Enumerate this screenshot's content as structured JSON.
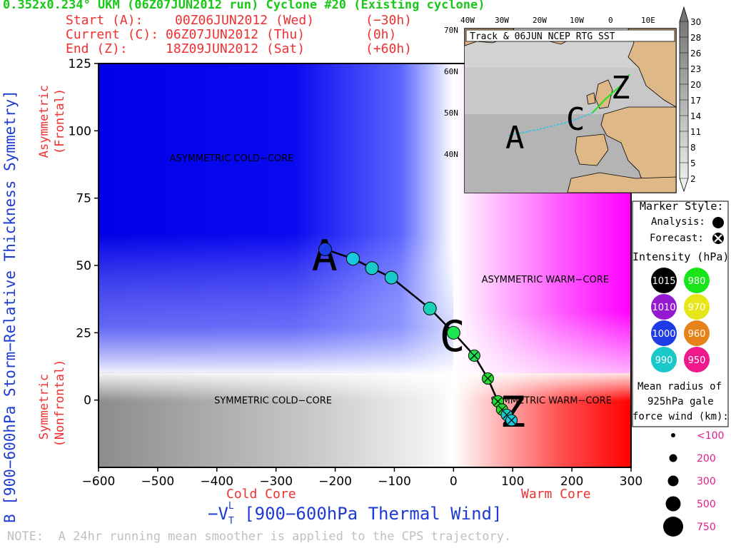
{
  "header": {
    "title": "0.352x0.234° UKM (06Z07JUN2012 run) Cyclone #20 (Existing cyclone)",
    "start_label": "Start (A):",
    "start_time": "00Z06JUN2012 (Wed)",
    "start_offset": "(−30h)",
    "current_label": "Current (C):",
    "current_time": "06Z07JUN2012 (Thu)",
    "current_offset": "(0h)",
    "end_label": "End (Z):",
    "end_time": "18Z09JUN2012 (Sat)",
    "end_offset": "(+60h)"
  },
  "note": "NOTE:  A 24hr running mean smoother is applied to the CPS trajectory.",
  "colors": {
    "title_green": "#19c819",
    "header_red": "#f03030",
    "axis_blue": "#1e3cd2",
    "cold_blue": "#1e1ee6",
    "warm_magenta": "#ff00ff",
    "warm_red": "#ff0000",
    "track_line": "#000000"
  },
  "chart_data": {
    "type": "scatter",
    "xlabel": "−V",
    "xlabel_sub": "T",
    "xlabel_sup": "L",
    "xlabel_suffix": " [900−600hPa Thermal Wind]",
    "ylabel": "B [900−600hPa Storm−Relative Thickness Symmetry]",
    "x_left_label": "Cold Core",
    "x_right_label": "Warm Core",
    "y_top_label_1": "Asymmetric",
    "y_top_label_2": "(Frontal)",
    "y_bottom_label_1": "Symmetric",
    "y_bottom_label_2": "(Nonfrontal)",
    "xlim": [
      -600,
      300
    ],
    "ylim": [
      -25,
      125
    ],
    "x_ticks": [
      -600,
      -500,
      -400,
      -300,
      -200,
      -100,
      0,
      100,
      200,
      300
    ],
    "x_tick_labels": [
      "−600",
      "−500",
      "−400",
      "−300",
      "−200",
      "−100",
      "0",
      "100",
      "200",
      "300"
    ],
    "y_ticks": [
      0,
      25,
      50,
      75,
      100,
      125
    ],
    "y_tick_labels": [
      "0",
      "25",
      "50",
      "75",
      "100",
      "125"
    ],
    "region_labels": {
      "asym_cold": "ASYMMETRIC COLD−CORE",
      "asym_warm": "ASYMMETRIC WARM−CORE",
      "sym_cold": "SYMMETRIC COLD−CORE",
      "sym_warm": "SYMMETRIC WARM−CORE"
    },
    "region_label_positions": {
      "asym_cold": [
        -375,
        90
      ],
      "asym_warm": [
        155,
        45
      ],
      "sym_cold": [
        -305,
        0
      ],
      "sym_warm": [
        165,
        0
      ]
    },
    "letters": [
      {
        "text": "A",
        "x": -218,
        "y": 54
      },
      {
        "text": "C",
        "x": -2,
        "y": 24
      },
      {
        "text": "Z",
        "x": 100,
        "y": -4
      }
    ],
    "analysis_points": [
      {
        "x": -217,
        "y": 56,
        "color": "#1e3ce6"
      },
      {
        "x": -170,
        "y": 52.5,
        "color": "#19c8dc"
      },
      {
        "x": -138,
        "y": 49,
        "color": "#19c8c8"
      },
      {
        "x": -105,
        "y": 45.5,
        "color": "#19c8c8"
      },
      {
        "x": -40,
        "y": 34,
        "color": "#19d2b4"
      },
      {
        "x": 0,
        "y": 25,
        "color": "#1ee650"
      }
    ],
    "forecast_points": [
      {
        "x": 35,
        "y": 16.5,
        "color": "#23dc50"
      },
      {
        "x": 58,
        "y": 8,
        "color": "#23dc32"
      },
      {
        "x": 75,
        "y": -0.5,
        "color": "#23dc32"
      },
      {
        "x": 82,
        "y": -3.5,
        "color": "#23dc32"
      },
      {
        "x": 90,
        "y": -5.5,
        "color": "#19c8c8"
      },
      {
        "x": 98,
        "y": -7.5,
        "color": "#19c8dc"
      }
    ],
    "track_line": [
      [
        -217,
        56
      ],
      [
        -170,
        52.5
      ],
      [
        -138,
        49
      ],
      [
        -105,
        45.5
      ],
      [
        -40,
        34
      ],
      [
        0,
        25
      ],
      [
        35,
        16.5
      ],
      [
        58,
        8
      ],
      [
        75,
        -0.5
      ],
      [
        82,
        -3.5
      ],
      [
        90,
        -5.5
      ],
      [
        98,
        -7.5
      ]
    ]
  },
  "inset_map": {
    "title": "Track & 06JUN NCEP RTG SST",
    "lon_labels": [
      "40W",
      "30W",
      "20W",
      "10W",
      "0",
      "10E"
    ],
    "lat_labels": [
      "70N",
      "60N",
      "50N",
      "40N"
    ],
    "letters": [
      "A",
      "C",
      "Z"
    ],
    "colorbar_labels": [
      "30",
      "28",
      "26",
      "23",
      "20",
      "17",
      "14",
      "11",
      "8",
      "5",
      "2"
    ]
  },
  "legend": {
    "marker_style_title": "Marker Style:",
    "analysis_label": "Analysis:",
    "forecast_label": "Forecast:",
    "intensity_title": "Intensity (hPa):",
    "intensity_items": [
      {
        "value": "1015",
        "color": "#000000",
        "text_color": "#ffffff"
      },
      {
        "value": "980",
        "color": "#19e619",
        "text_color": "#ffffff"
      },
      {
        "value": "1010",
        "color": "#9619d2",
        "text_color": "#ffffff"
      },
      {
        "value": "970",
        "color": "#e6e619",
        "text_color": "#ffffff"
      },
      {
        "value": "1000",
        "color": "#1e3ce6",
        "text_color": "#ffffff"
      },
      {
        "value": "960",
        "color": "#e68219",
        "text_color": "#ffffff"
      },
      {
        "value": "990",
        "color": "#19c8c8",
        "text_color": "#ffffff"
      },
      {
        "value": "950",
        "color": "#f0198c",
        "text_color": "#ffffff"
      }
    ],
    "radius_title_1": "Mean radius of",
    "radius_title_2": "925hPa gale",
    "radius_title_3": "force wind (km):",
    "radius_items": [
      {
        "label": "<100",
        "size": 1
      },
      {
        "label": "200",
        "size": 2
      },
      {
        "label": "300",
        "size": 3
      },
      {
        "label": "500",
        "size": 4
      },
      {
        "label": "750",
        "size": 5
      }
    ],
    "radius_label_color": "#e6198c"
  }
}
